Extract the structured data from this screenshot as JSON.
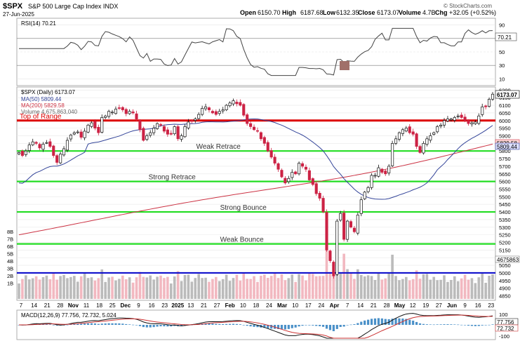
{
  "header": {
    "symbol": "$SPX",
    "name": "S&P 500 Large Cap Index INDX",
    "date": "27-Jun-2025",
    "open_label": "Open",
    "open": "6150.70",
    "high_label": "High",
    "high": "6187.68",
    "low_label": "Low",
    "low": "6132.35",
    "close_label": "Close",
    "close": "6173.07",
    "volume_label": "Volume",
    "volume": "4.7B",
    "chg_label": "Chg",
    "chg": "+32.05 (+0.52%)",
    "watermark": "© StockCharts.com"
  },
  "rsi": {
    "label": "RSI(14) 70.21",
    "last_tag": "70.21",
    "ticks": [
      90,
      70,
      50,
      30,
      10
    ]
  },
  "price": {
    "legend": {
      "main": "$SPX (Daily) 6173.07",
      "ma50": "MA(50) 5809.44",
      "ma200": "MA(200) 5829.58",
      "volume": "Volume 4,675,863,040"
    },
    "ticks": [
      6200,
      6150,
      6100,
      6050,
      6000,
      5950,
      5900,
      5850,
      5800,
      5750,
      5700,
      5650,
      5600,
      5550,
      5500,
      5450,
      5400,
      5350,
      5300,
      5250,
      5200,
      5150,
      5100,
      5050,
      5000,
      4950,
      4900,
      4850
    ],
    "tags": {
      "close": "6173.07",
      "ma200": "5829.58",
      "ma50": "5809.44",
      "volume": "4675863"
    },
    "vol_ticks": [
      "8B",
      "7B",
      "6B",
      "5B",
      "4B",
      "3B",
      "2B",
      "1B"
    ]
  },
  "annotations": [
    {
      "text": "Top of Range",
      "level": 6000,
      "color": "#dd0000",
      "line_color": "#dd0000",
      "label_x": 0.0
    },
    {
      "text": "Weak Retrace",
      "level": 5800,
      "color": "#333333",
      "line_color": "#22dd22",
      "label_x": 0.37
    },
    {
      "text": "Strong Retrace",
      "level": 5600,
      "color": "#333333",
      "line_color": "#22dd22",
      "label_x": 0.27
    },
    {
      "text": "Strong Bounce",
      "level": 5400,
      "color": "#333333",
      "line_color": "#22dd22",
      "label_x": 0.42
    },
    {
      "text": "Weak Bounce",
      "level": 5190,
      "color": "#333333",
      "line_color": "#22dd22",
      "label_x": 0.42
    },
    {
      "text": "",
      "level": 5000,
      "color": "#333333",
      "line_color": "#1111cc",
      "label_x": 0
    }
  ],
  "xaxis": {
    "labels": [
      "7",
      "14",
      "21",
      "28",
      "Nov",
      "11",
      "18",
      "25",
      "Dec",
      "9",
      "16",
      "23",
      "2025",
      "13",
      "21",
      "27",
      "Feb",
      "10",
      "18",
      "24",
      "Mar",
      "10",
      "17",
      "24",
      "Apr",
      "7",
      "14",
      "21",
      "28",
      "May",
      "12",
      "19",
      "27",
      "Jun",
      "9",
      "16",
      "23"
    ],
    "bold": [
      "Nov",
      "Dec",
      "2025",
      "Feb",
      "Mar",
      "Apr",
      "May",
      "Jun"
    ]
  },
  "macd": {
    "label": "MACD(12,26,9) 77.756, 72.732, 5.024",
    "tags": [
      "77.756",
      "72.732"
    ],
    "ticks": [
      "100",
      "0",
      "-100"
    ]
  },
  "chart_data": {
    "type": "candlestick",
    "symbol": "$SPX",
    "period": "Daily",
    "y_range": [
      4820,
      6220
    ],
    "levels": [
      6000,
      5800,
      5600,
      5400,
      5190,
      5000
    ],
    "close_series": [
      5790,
      5770,
      5800,
      5840,
      5860,
      5850,
      5820,
      5845,
      5855,
      5830,
      5770,
      5725,
      5780,
      5815,
      5870,
      5905,
      5920,
      5925,
      5890,
      5930,
      5970,
      5985,
      5950,
      5920,
      6020,
      6030,
      6060,
      6055,
      6075,
      6080,
      6070,
      6045,
      6060,
      6050,
      6010,
      5940,
      5870,
      5900,
      5920,
      5950,
      5980,
      5970,
      5930,
      5910,
      5910,
      5960,
      5880,
      5900,
      5960,
      5990,
      5995,
      6010,
      6040,
      6080,
      6090,
      6070,
      6050,
      6040,
      6060,
      6070,
      6100,
      6115,
      6130,
      6110,
      6100,
      6035,
      5980,
      5960,
      5940,
      5930,
      5880,
      5850,
      5800,
      5760,
      5720,
      5680,
      5630,
      5590,
      5620,
      5660,
      5650,
      5720,
      5700,
      5680,
      5610,
      5580,
      5520,
      5490,
      5400,
      5150,
      5080,
      4980,
      5340,
      5390,
      5220,
      5340,
      5300,
      5270,
      5380,
      5480,
      5530,
      5560,
      5640,
      5640,
      5690,
      5660,
      5650,
      5700,
      5850,
      5880,
      5920,
      5940,
      5950,
      5920,
      5910,
      5830,
      5790,
      5850,
      5880,
      5900,
      5920,
      5960,
      5970,
      6000,
      6010,
      6010,
      6020,
      6030,
      6020,
      6000,
      5980,
      5985,
      5990,
      6030,
      6090,
      6090,
      6140,
      6173
    ],
    "ma50_last": 5809.44,
    "ma200_last": 5829.58,
    "last_close": 6173.07,
    "rsi_last": 70.21,
    "macd_last": [
      77.756,
      72.732,
      5.024
    ]
  }
}
